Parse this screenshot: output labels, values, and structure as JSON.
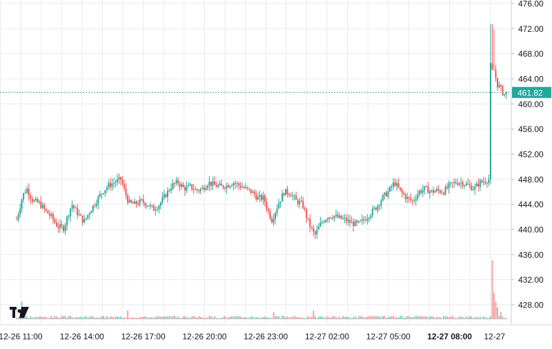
{
  "chart_data": {
    "type": "candlestick",
    "ylim": [
      424.8,
      476.0
    ],
    "y_ticks": [
      "476.00",
      "472.00",
      "468.00",
      "464.00",
      "460.00",
      "456.00",
      "452.00",
      "448.00",
      "444.00",
      "440.00",
      "436.00",
      "432.00",
      "428.00"
    ],
    "y_tick_values": [
      476,
      472,
      468,
      464,
      460,
      456,
      452,
      448,
      444,
      440,
      436,
      432,
      428
    ],
    "x_ticks": [
      {
        "label": "12-26 11:00",
        "t": 0,
        "bold": false
      },
      {
        "label": "12-26 14:00",
        "t": 3,
        "bold": false
      },
      {
        "label": "12-26 17:00",
        "t": 6,
        "bold": false
      },
      {
        "label": "12-26 20:00",
        "t": 9,
        "bold": false
      },
      {
        "label": "12-26 23:00",
        "t": 12,
        "bold": false
      },
      {
        "label": "12-27 02:00",
        "t": 15,
        "bold": false
      },
      {
        "label": "12-27 05:00",
        "t": 18,
        "bold": false
      },
      {
        "label": "12-27 08:00",
        "t": 21,
        "bold": true
      },
      {
        "label": "12-27",
        "t": 23.2,
        "bold": false
      }
    ],
    "last_price": 461.82,
    "last_price_label": "461.82",
    "price_path": [
      [
        -0.2,
        441.6
      ],
      [
        0.1,
        445.4
      ],
      [
        0.3,
        446.5
      ],
      [
        0.6,
        444.5
      ],
      [
        0.9,
        444.2
      ],
      [
        1.2,
        443.0
      ],
      [
        1.5,
        442.0
      ],
      [
        1.8,
        440.5
      ],
      [
        2.1,
        440.2
      ],
      [
        2.5,
        444.0
      ],
      [
        2.8,
        442.5
      ],
      [
        3.1,
        441.2
      ],
      [
        3.4,
        443.0
      ],
      [
        3.7,
        444.5
      ],
      [
        4.0,
        446.0
      ],
      [
        4.3,
        447.0
      ],
      [
        4.6,
        447.5
      ],
      [
        4.9,
        448.0
      ],
      [
        5.1,
        446.0
      ],
      [
        5.3,
        444.2
      ],
      [
        5.6,
        444.0
      ],
      [
        5.9,
        444.5
      ],
      [
        6.2,
        444.0
      ],
      [
        6.5,
        443.2
      ],
      [
        6.8,
        444.0
      ],
      [
        7.1,
        445.5
      ],
      [
        7.4,
        447.0
      ],
      [
        7.7,
        447.5
      ],
      [
        8.0,
        446.5
      ],
      [
        8.3,
        446.8
      ],
      [
        8.6,
        446.2
      ],
      [
        8.9,
        446.5
      ],
      [
        9.2,
        447.5
      ],
      [
        9.5,
        447.0
      ],
      [
        9.8,
        446.8
      ],
      [
        10.1,
        447.0
      ],
      [
        10.4,
        447.5
      ],
      [
        10.7,
        447.0
      ],
      [
        11.0,
        446.5
      ],
      [
        11.3,
        446.0
      ],
      [
        11.6,
        445.0
      ],
      [
        11.9,
        445.0
      ],
      [
        12.1,
        443.0
      ],
      [
        12.3,
        441.5
      ],
      [
        12.6,
        444.0
      ],
      [
        12.9,
        446.0
      ],
      [
        13.2,
        445.8
      ],
      [
        13.5,
        444.5
      ],
      [
        13.8,
        444.0
      ],
      [
        14.1,
        441.0
      ],
      [
        14.4,
        439.0
      ],
      [
        14.7,
        441.0
      ],
      [
        15.0,
        442.0
      ],
      [
        15.3,
        442.2
      ],
      [
        15.6,
        441.8
      ],
      [
        15.9,
        441.5
      ],
      [
        16.2,
        441.0
      ],
      [
        16.5,
        440.8
      ],
      [
        16.8,
        441.5
      ],
      [
        17.1,
        442.5
      ],
      [
        17.4,
        443.5
      ],
      [
        17.7,
        445.0
      ],
      [
        18.0,
        446.0
      ],
      [
        18.3,
        447.5
      ],
      [
        18.6,
        446.0
      ],
      [
        18.9,
        445.0
      ],
      [
        19.2,
        444.5
      ],
      [
        19.5,
        446.0
      ],
      [
        19.8,
        446.5
      ],
      [
        20.1,
        446.0
      ],
      [
        20.4,
        446.2
      ],
      [
        20.7,
        446.0
      ],
      [
        21.0,
        447.0
      ],
      [
        21.3,
        447.5
      ],
      [
        21.6,
        447.5
      ],
      [
        21.9,
        447.0
      ],
      [
        22.2,
        446.5
      ],
      [
        22.5,
        447.5
      ],
      [
        22.8,
        447.8
      ],
      [
        23.0,
        448.2
      ],
      [
        23.05,
        460.0
      ],
      [
        23.1,
        466.5
      ],
      [
        23.2,
        465.0
      ],
      [
        23.35,
        463.0
      ],
      [
        23.5,
        462.5
      ],
      [
        23.65,
        461.5
      ],
      [
        23.8,
        461.82
      ]
    ],
    "volume_spikes": [
      {
        "t": 0.05,
        "v": 0.3
      },
      {
        "t": 5.2,
        "v": 0.15
      },
      {
        "t": 12.4,
        "v": 0.12
      },
      {
        "t": 14.3,
        "v": 0.15
      },
      {
        "t": 23.05,
        "v": 1.0
      },
      {
        "t": 23.15,
        "v": 0.45
      },
      {
        "t": 23.25,
        "v": 0.3
      },
      {
        "t": 23.35,
        "v": 0.2
      },
      {
        "t": 23.5,
        "v": 0.12
      }
    ],
    "colors": {
      "up": "#26a69a",
      "down": "#ef5350",
      "price_line": "#26a69a",
      "grid": "#e9ebf0",
      "text": "#131722",
      "logo": "#131722"
    }
  },
  "branding": {
    "logo_icon": "tradingview-logo-icon"
  }
}
